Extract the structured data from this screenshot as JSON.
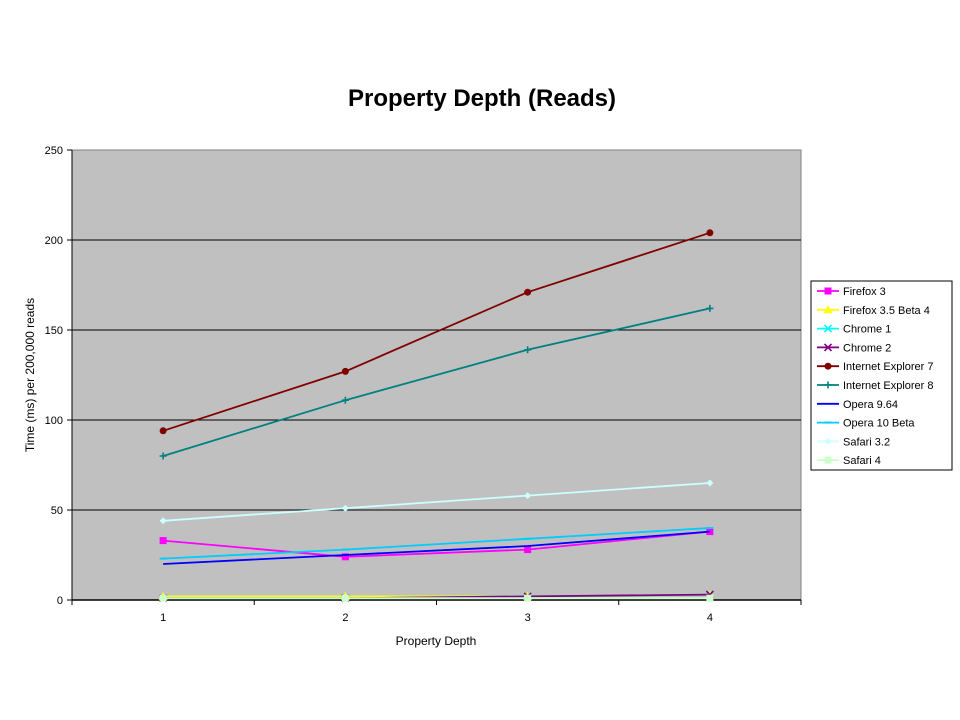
{
  "chart_data": {
    "type": "line",
    "title": "Property Depth (Reads)",
    "xlabel": "Property Depth",
    "ylabel": "Time (ms) per 200,000 reads",
    "x": [
      1,
      2,
      3,
      4
    ],
    "xticks": [
      "1",
      "2",
      "3",
      "4"
    ],
    "ylim": [
      0,
      250
    ],
    "yticks": [
      "0",
      "50",
      "100",
      "150",
      "200",
      "250"
    ],
    "grid": true,
    "legend": "right",
    "plot_background": "#c0c0c0",
    "series": [
      {
        "name": "Firefox 3",
        "values": [
          33,
          24,
          28,
          38
        ],
        "color": "#ff00ff",
        "marker": "square"
      },
      {
        "name": "Firefox 3.5 Beta 4",
        "values": [
          2,
          2,
          2,
          3
        ],
        "color": "#ffff00",
        "marker": "triangle"
      },
      {
        "name": "Chrome 1",
        "values": [
          1,
          1,
          2,
          3
        ],
        "color": "#00ffff",
        "marker": "x"
      },
      {
        "name": "Chrome 2",
        "values": [
          1,
          1,
          2,
          3
        ],
        "color": "#800080",
        "marker": "x"
      },
      {
        "name": "Internet Explorer 7",
        "values": [
          94,
          127,
          171,
          204
        ],
        "color": "#800000",
        "marker": "circle"
      },
      {
        "name": "Internet Explorer 8",
        "values": [
          80,
          111,
          139,
          162
        ],
        "color": "#008080",
        "marker": "plus"
      },
      {
        "name": "Opera 9.64",
        "values": [
          20,
          25,
          30,
          38
        ],
        "color": "#0000ff",
        "marker": "none"
      },
      {
        "name": "Opera 10 Beta",
        "values": [
          23,
          28,
          34,
          40
        ],
        "color": "#00ccff",
        "marker": "dash"
      },
      {
        "name": "Safari 3.2",
        "values": [
          44,
          51,
          58,
          65
        ],
        "color": "#ccffff",
        "marker": "diamond"
      },
      {
        "name": "Safari 4",
        "values": [
          1,
          1,
          1,
          1
        ],
        "color": "#ccffcc",
        "marker": "square"
      }
    ]
  }
}
